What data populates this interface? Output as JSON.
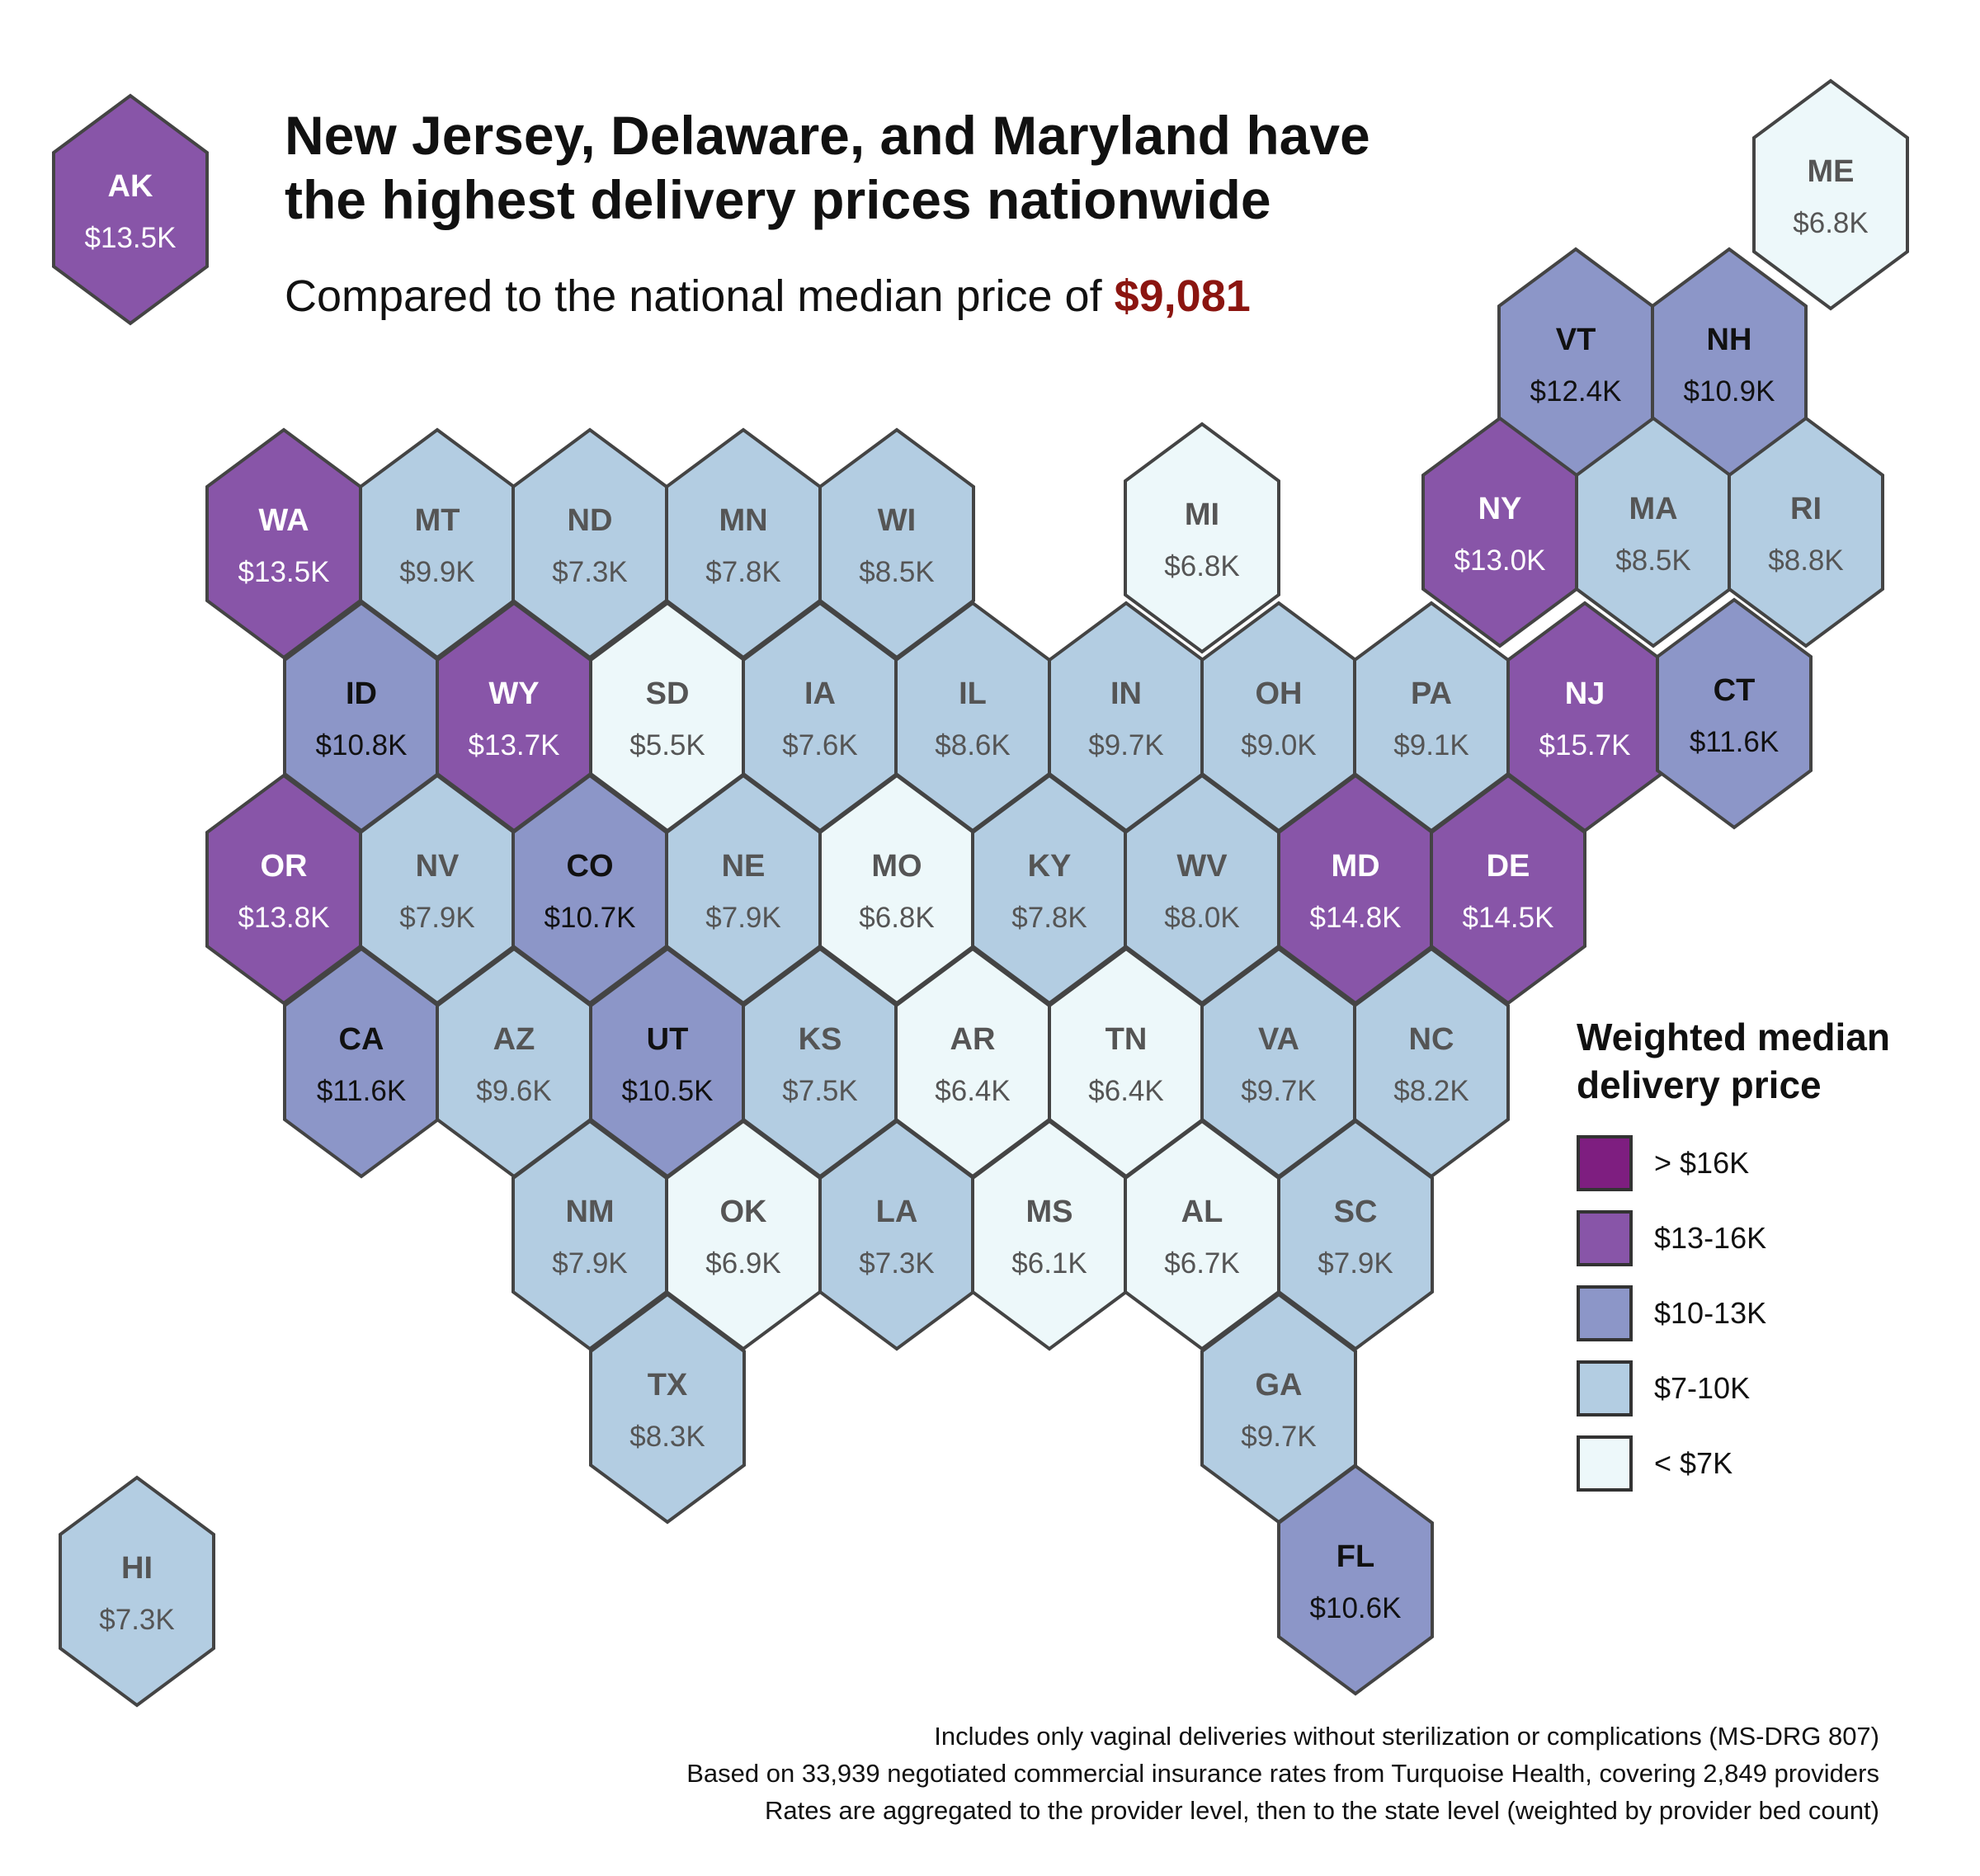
{
  "title": {
    "line1": "New Jersey, Delaware, and Maryland have",
    "line2": "the highest delivery prices nationwide"
  },
  "subtitle": {
    "prefix": "Compared to the national median price of ",
    "median_value": "$9,081"
  },
  "legend": {
    "title_line1": "Weighted median",
    "title_line2": "delivery price",
    "items": [
      {
        "label": "> $16K",
        "color": "#7e1e80"
      },
      {
        "label": "$13-16K",
        "color": "#8855a8"
      },
      {
        "label": "$10-13K",
        "color": "#8c96c8"
      },
      {
        "label": "$7-10K",
        "color": "#b3cde2"
      },
      {
        "label": "< $7K",
        "color": "#edf8fa"
      }
    ]
  },
  "text_colors": {
    "on_dark": "#ffffff",
    "on_mid": "#111111",
    "on_light": "#555555"
  },
  "states": [
    {
      "abbr": "AK",
      "value": "$13.5K",
      "price": 13.5
    },
    {
      "abbr": "ME",
      "value": "$6.8K",
      "price": 6.8
    },
    {
      "abbr": "VT",
      "value": "$12.4K",
      "price": 12.4
    },
    {
      "abbr": "NH",
      "value": "$10.9K",
      "price": 10.9
    },
    {
      "abbr": "WA",
      "value": "$13.5K",
      "price": 13.5
    },
    {
      "abbr": "MT",
      "value": "$9.9K",
      "price": 9.9
    },
    {
      "abbr": "ND",
      "value": "$7.3K",
      "price": 7.3
    },
    {
      "abbr": "MN",
      "value": "$7.8K",
      "price": 7.8
    },
    {
      "abbr": "WI",
      "value": "$8.5K",
      "price": 8.5
    },
    {
      "abbr": "MI",
      "value": "$6.8K",
      "price": 6.8
    },
    {
      "abbr": "NY",
      "value": "$13.0K",
      "price": 13.0
    },
    {
      "abbr": "MA",
      "value": "$8.5K",
      "price": 8.5
    },
    {
      "abbr": "RI",
      "value": "$8.8K",
      "price": 8.8
    },
    {
      "abbr": "ID",
      "value": "$10.8K",
      "price": 10.8
    },
    {
      "abbr": "WY",
      "value": "$13.7K",
      "price": 13.7
    },
    {
      "abbr": "SD",
      "value": "$5.5K",
      "price": 5.5
    },
    {
      "abbr": "IA",
      "value": "$7.6K",
      "price": 7.6
    },
    {
      "abbr": "IL",
      "value": "$8.6K",
      "price": 8.6
    },
    {
      "abbr": "IN",
      "value": "$9.7K",
      "price": 9.7
    },
    {
      "abbr": "OH",
      "value": "$9.0K",
      "price": 9.0
    },
    {
      "abbr": "PA",
      "value": "$9.1K",
      "price": 9.1
    },
    {
      "abbr": "NJ",
      "value": "$15.7K",
      "price": 15.7
    },
    {
      "abbr": "CT",
      "value": "$11.6K",
      "price": 11.6
    },
    {
      "abbr": "OR",
      "value": "$13.8K",
      "price": 13.8
    },
    {
      "abbr": "NV",
      "value": "$7.9K",
      "price": 7.9
    },
    {
      "abbr": "CO",
      "value": "$10.7K",
      "price": 10.7
    },
    {
      "abbr": "NE",
      "value": "$7.9K",
      "price": 7.9
    },
    {
      "abbr": "MO",
      "value": "$6.8K",
      "price": 6.8
    },
    {
      "abbr": "KY",
      "value": "$7.8K",
      "price": 7.8
    },
    {
      "abbr": "WV",
      "value": "$8.0K",
      "price": 8.0
    },
    {
      "abbr": "MD",
      "value": "$14.8K",
      "price": 14.8
    },
    {
      "abbr": "DE",
      "value": "$14.5K",
      "price": 14.5
    },
    {
      "abbr": "CA",
      "value": "$11.6K",
      "price": 11.6
    },
    {
      "abbr": "AZ",
      "value": "$9.6K",
      "price": 9.6
    },
    {
      "abbr": "UT",
      "value": "$10.5K",
      "price": 10.5
    },
    {
      "abbr": "KS",
      "value": "$7.5K",
      "price": 7.5
    },
    {
      "abbr": "AR",
      "value": "$6.4K",
      "price": 6.4
    },
    {
      "abbr": "TN",
      "value": "$6.4K",
      "price": 6.4
    },
    {
      "abbr": "VA",
      "value": "$9.7K",
      "price": 9.7
    },
    {
      "abbr": "NC",
      "value": "$8.2K",
      "price": 8.2
    },
    {
      "abbr": "NM",
      "value": "$7.9K",
      "price": 7.9
    },
    {
      "abbr": "OK",
      "value": "$6.9K",
      "price": 6.9
    },
    {
      "abbr": "LA",
      "value": "$7.3K",
      "price": 7.3
    },
    {
      "abbr": "MS",
      "value": "$6.1K",
      "price": 6.1
    },
    {
      "abbr": "AL",
      "value": "$6.7K",
      "price": 6.7
    },
    {
      "abbr": "SC",
      "value": "$7.9K",
      "price": 7.9
    },
    {
      "abbr": "TX",
      "value": "$8.3K",
      "price": 8.3
    },
    {
      "abbr": "GA",
      "value": "$9.7K",
      "price": 9.7
    },
    {
      "abbr": "HI",
      "value": "$7.3K",
      "price": 7.3
    },
    {
      "abbr": "FL",
      "value": "$10.6K",
      "price": 10.6
    }
  ],
  "footnotes": [
    "Includes only vaginal deliveries without sterilization or complications (MS-DRG 807)",
    "Based on 33,939 negotiated commercial insurance rates from Turquoise Health, covering 2,849 providers",
    "Rates are aggregated to the provider level, then to the state level (weighted by provider bed count)"
  ]
}
